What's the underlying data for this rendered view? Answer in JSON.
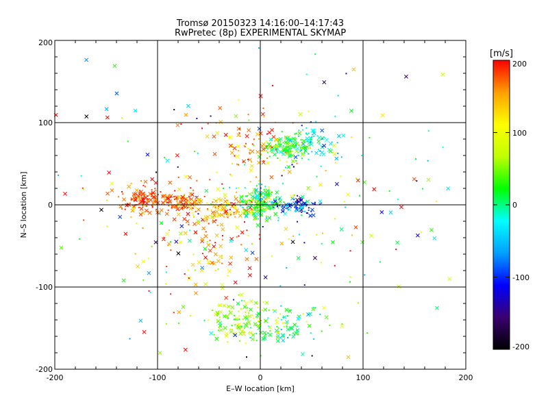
{
  "chart_data": {
    "type": "scatter",
    "title": "Tromsø 20150323 14:16:00–14:17:43",
    "subtitle": "RwPretec (8p) EXPERIMENTAL SKYMAP",
    "xlabel": "E–W location [km]",
    "ylabel": "N–S location [km]",
    "xlim": [
      -200,
      200
    ],
    "ylim": [
      -200,
      200
    ],
    "xticks": [
      "-200",
      "-100",
      "0",
      "100",
      "200"
    ],
    "yticks": [
      "200",
      "100",
      "0",
      "-100",
      "-200"
    ],
    "grid_lines_x": [
      -100,
      0,
      100
    ],
    "grid_lines_y": [
      -100,
      0,
      100
    ],
    "colorbar": {
      "label": "[m/s]",
      "range": [
        -200,
        200
      ],
      "ticks": [
        "200",
        "100",
        "0",
        "-100",
        "-200"
      ],
      "colormap": [
        "#000000",
        "#3a0070",
        "#0000ff",
        "#00a0ff",
        "#00ffff",
        "#00ff00",
        "#c0ff00",
        "#ffff00",
        "#ffa000",
        "#ff0000"
      ]
    },
    "marker_note": "points colored by Doppler velocity; crosses and small dots",
    "clusters": [
      {
        "cx": -115,
        "cy": 7,
        "sx": 14,
        "sy": 8,
        "v": 180,
        "sv": 20,
        "n": 120
      },
      {
        "cx": -75,
        "cy": 3,
        "sx": 12,
        "sy": 6,
        "v": 170,
        "sv": 25,
        "n": 90
      },
      {
        "cx": -30,
        "cy": -5,
        "sx": 14,
        "sy": 8,
        "v": 140,
        "sv": 40,
        "n": 110
      },
      {
        "cx": 0,
        "cy": 3,
        "sx": 10,
        "sy": 10,
        "v": 20,
        "sv": 35,
        "n": 180
      },
      {
        "cx": 35,
        "cy": -2,
        "sx": 12,
        "sy": 6,
        "v": -90,
        "sv": 40,
        "n": 90
      },
      {
        "cx": 25,
        "cy": 70,
        "sx": 13,
        "sy": 8,
        "v": 30,
        "sv": 30,
        "n": 140
      },
      {
        "cx": 55,
        "cy": 75,
        "sx": 15,
        "sy": 10,
        "v": -25,
        "sv": 30,
        "n": 60
      },
      {
        "cx": -20,
        "cy": -140,
        "sx": 16,
        "sy": 12,
        "v": 60,
        "sv": 35,
        "n": 130
      },
      {
        "cx": 25,
        "cy": -150,
        "sx": 15,
        "sy": 12,
        "v": 10,
        "sv": 40,
        "n": 80
      },
      {
        "cx": -50,
        "cy": -50,
        "sx": 30,
        "sy": 40,
        "v": 150,
        "sv": 40,
        "n": 130
      },
      {
        "cx": -10,
        "cy": 70,
        "sx": 18,
        "sy": 20,
        "v": 160,
        "sv": 35,
        "n": 80
      },
      {
        "cx": 0,
        "cy": 0,
        "sx": 110,
        "sy": 110,
        "v": 40,
        "sv": 120,
        "n": 260
      }
    ]
  }
}
